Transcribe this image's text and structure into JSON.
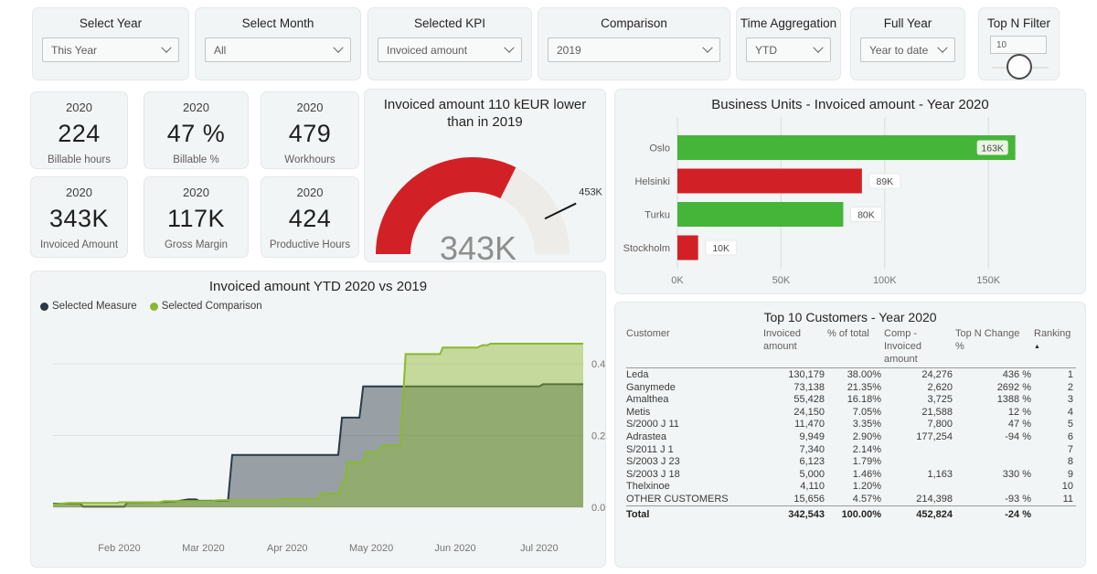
{
  "filters": [
    {
      "label": "Select Year",
      "value": "This Year"
    },
    {
      "label": "Select Month",
      "value": "All"
    },
    {
      "label": "Selected KPI",
      "value": "Invoiced amount"
    },
    {
      "label": "Comparison",
      "value": "2019"
    },
    {
      "label": "Time Aggregation",
      "value": "YTD"
    },
    {
      "label": "Full Year",
      "value": "Year to date"
    },
    {
      "label": "Top N Filter",
      "value": "10"
    }
  ],
  "kpis": [
    {
      "year": "2020",
      "value": "224",
      "label": "Billable hours"
    },
    {
      "year": "2020",
      "value": "47 %",
      "label": "Billable %"
    },
    {
      "year": "2020",
      "value": "479",
      "label": "Workhours"
    },
    {
      "year": "2020",
      "value": "343K",
      "label": "Invoiced Amount"
    },
    {
      "year": "2020",
      "value": "117K",
      "label": "Gross Margin"
    },
    {
      "year": "2020",
      "value": "424",
      "label": "Productive Hours"
    }
  ],
  "chart_data": [
    {
      "type": "gauge",
      "title": "Invoiced amount 110 kEUR lower than in 2019",
      "value": 343,
      "value_label": "343K",
      "target": 453,
      "target_label": "453K",
      "min": 0,
      "colors": {
        "fill": "#d22126",
        "track": "#eeece9",
        "value_text": "#8e8e8e",
        "tick": "#1a1a1a"
      }
    },
    {
      "type": "bar",
      "orientation": "horizontal",
      "title": "Business Units - Invoiced amount - Year 2020",
      "categories": [
        "Oslo",
        "Helsinki",
        "Turku",
        "Stockholm"
      ],
      "values": [
        163,
        89,
        80,
        10
      ],
      "value_labels": [
        "163K",
        "89K",
        "80K",
        "10K"
      ],
      "bar_colors": [
        "#45b53a",
        "#d22126",
        "#45b53a",
        "#d22126"
      ],
      "x_ticks": [
        {
          "value": 0,
          "label": "0K"
        },
        {
          "value": 50,
          "label": "50K"
        },
        {
          "value": 100,
          "label": "100K"
        },
        {
          "value": 150,
          "label": "150K"
        }
      ],
      "xlim": [
        0,
        175
      ],
      "grid": true
    },
    {
      "type": "area",
      "title": "Invoiced amount YTD 2020 vs 2019",
      "legend_position": "top-left",
      "x_labels": [
        "Feb 2020",
        "Mar 2020",
        "Apr 2020",
        "May 2020",
        "Jun 2020",
        "Jul 2020"
      ],
      "y_ticks": [
        {
          "value": 0,
          "label": "0.0M"
        },
        {
          "value": 0.2,
          "label": "0.2M"
        },
        {
          "value": 0.4,
          "label": "0.4M"
        }
      ],
      "ylim": [
        0,
        0.52
      ],
      "unit": "M EUR",
      "series": [
        {
          "name": "Selected Measure",
          "color": "#2b3947",
          "points": [
            [
              0,
              0.01
            ],
            [
              0.05,
              0.011
            ],
            [
              0.057,
              0.002
            ],
            [
              0.134,
              0.002
            ],
            [
              0.14,
              0.013
            ],
            [
              0.2,
              0.014
            ],
            [
              0.23,
              0.016
            ],
            [
              0.255,
              0.022
            ],
            [
              0.27,
              0.022
            ],
            [
              0.275,
              0.018
            ],
            [
              0.33,
              0.018
            ],
            [
              0.338,
              0.146
            ],
            [
              0.538,
              0.146
            ],
            [
              0.545,
              0.25
            ],
            [
              0.578,
              0.25
            ],
            [
              0.585,
              0.337
            ],
            [
              0.917,
              0.337
            ],
            [
              0.924,
              0.343
            ],
            [
              1,
              0.343
            ]
          ]
        },
        {
          "name": "Selected Comparison",
          "color": "#8cb82f",
          "points": [
            [
              0,
              0.008
            ],
            [
              0.03,
              0.012
            ],
            [
              0.12,
              0.012
            ],
            [
              0.125,
              0.014
            ],
            [
              0.2,
              0.014
            ],
            [
              0.21,
              0.017
            ],
            [
              0.3,
              0.017
            ],
            [
              0.31,
              0.02
            ],
            [
              0.42,
              0.02
            ],
            [
              0.43,
              0.023
            ],
            [
              0.5,
              0.023
            ],
            [
              0.505,
              0.038
            ],
            [
              0.54,
              0.038
            ],
            [
              0.545,
              0.068
            ],
            [
              0.55,
              0.068
            ],
            [
              0.555,
              0.125
            ],
            [
              0.585,
              0.125
            ],
            [
              0.59,
              0.155
            ],
            [
              0.615,
              0.155
            ],
            [
              0.62,
              0.172
            ],
            [
              0.655,
              0.172
            ],
            [
              0.665,
              0.427
            ],
            [
              0.73,
              0.427
            ],
            [
              0.735,
              0.445
            ],
            [
              0.8,
              0.445
            ],
            [
              0.81,
              0.452
            ],
            [
              0.82,
              0.452
            ],
            [
              0.825,
              0.456
            ],
            [
              1,
              0.456
            ]
          ]
        }
      ]
    },
    {
      "type": "table",
      "title": "Top 10 Customers - Year 2020",
      "columns": [
        "Customer",
        "Invoiced amount",
        "% of total",
        "Comp - Invoiced amount",
        "Top N Change %",
        "Ranking"
      ],
      "sort_column": "Ranking",
      "sort_direction": "asc",
      "rows": [
        [
          "Leda",
          "130,179",
          "38.00%",
          "24,276",
          "436 %",
          "1"
        ],
        [
          "Ganymede",
          "73,138",
          "21.35%",
          "2,620",
          "2692 %",
          "2"
        ],
        [
          "Amalthea",
          "55,428",
          "16.18%",
          "3,725",
          "1388 %",
          "3"
        ],
        [
          "Metis",
          "24,150",
          "7.05%",
          "21,588",
          "12 %",
          "4"
        ],
        [
          "S/2000 J 11",
          "11,470",
          "3.35%",
          "7,800",
          "47 %",
          "5"
        ],
        [
          "Adrastea",
          "9,949",
          "2.90%",
          "177,254",
          "-94 %",
          "6"
        ],
        [
          "S/2011 J 1",
          "7,340",
          "2.14%",
          "",
          "",
          "7"
        ],
        [
          "S/2003 J 23",
          "6,123",
          "1.79%",
          "",
          "",
          "8"
        ],
        [
          "S/2003 J 18",
          "5,000",
          "1.46%",
          "1,163",
          "330 %",
          "9"
        ],
        [
          "Thelxinoe",
          "4,110",
          "1.20%",
          "",
          "",
          "10"
        ],
        [
          "OTHER CUSTOMERS",
          "15,656",
          "4.57%",
          "214,398",
          "-93 %",
          "11"
        ]
      ],
      "total": [
        "Total",
        "342,543",
        "100.00%",
        "452,824",
        "-24 %",
        ""
      ]
    }
  ]
}
